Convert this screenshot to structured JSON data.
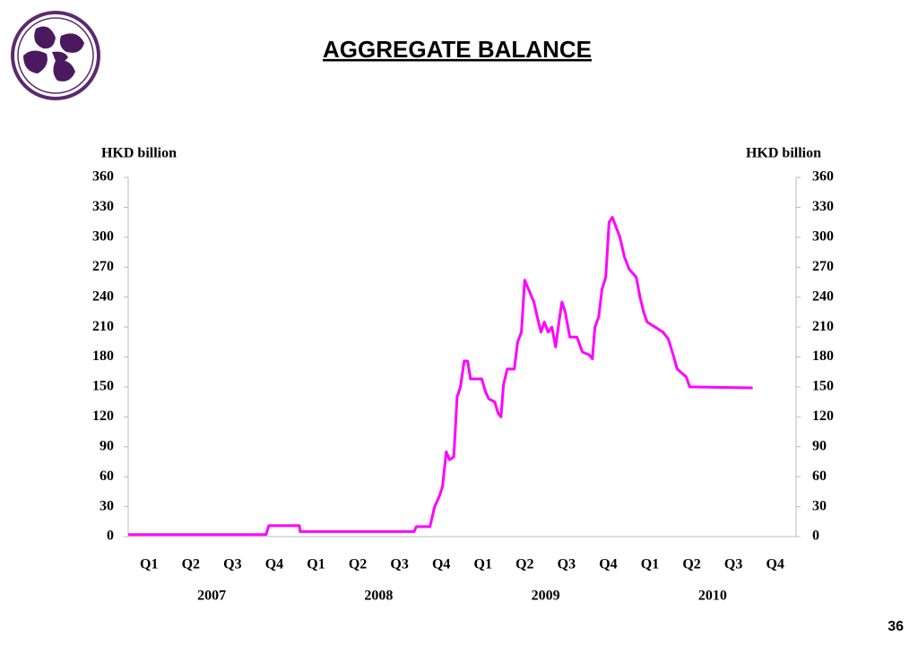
{
  "chart_data": {
    "type": "line",
    "title": "AGGREGATE BALANCE",
    "page_number": "36",
    "y_label": "HKD billion",
    "y2_label": "HKD billion",
    "xlim": [
      0,
      16
    ],
    "xticks": [
      {
        "value": 0.5,
        "label": "Q1"
      },
      {
        "value": 1.5,
        "label": "Q2"
      },
      {
        "value": 2.5,
        "label": "Q3"
      },
      {
        "value": 3.5,
        "label": "Q4"
      },
      {
        "value": 4.5,
        "label": "Q1"
      },
      {
        "value": 5.5,
        "label": "Q2"
      },
      {
        "value": 6.5,
        "label": "Q3"
      },
      {
        "value": 7.5,
        "label": "Q4"
      },
      {
        "value": 8.5,
        "label": "Q1"
      },
      {
        "value": 9.5,
        "label": "Q2"
      },
      {
        "value": 10.5,
        "label": "Q3"
      },
      {
        "value": 11.5,
        "label": "Q4"
      },
      {
        "value": 12.5,
        "label": "Q1"
      },
      {
        "value": 13.5,
        "label": "Q2"
      },
      {
        "value": 14.5,
        "label": "Q3"
      },
      {
        "value": 15.5,
        "label": "Q4"
      }
    ],
    "x_groups": [
      {
        "value": 2,
        "label": "2007"
      },
      {
        "value": 6,
        "label": "2008"
      },
      {
        "value": 10,
        "label": "2009"
      },
      {
        "value": 14,
        "label": "2010"
      }
    ],
    "ylim": [
      0,
      360
    ],
    "yticks": [
      0,
      30,
      60,
      90,
      120,
      150,
      180,
      210,
      240,
      270,
      300,
      330,
      360
    ],
    "y2lim": [
      0,
      360
    ],
    "y2ticks": [
      0,
      30,
      60,
      90,
      120,
      150,
      180,
      210,
      240,
      270,
      300,
      330,
      360
    ],
    "x": [
      0,
      3.3,
      3.37,
      4.1,
      4.12,
      6.85,
      6.9,
      7.23,
      7.34,
      7.45,
      7.53,
      7.62,
      7.7,
      7.8,
      7.88,
      7.96,
      8.05,
      8.13,
      8.2,
      8.47,
      8.56,
      8.64,
      8.78,
      8.86,
      8.93,
      8.99,
      9.08,
      9.25,
      9.33,
      9.42,
      9.5,
      9.59,
      9.72,
      9.8,
      9.89,
      9.97,
      10.06,
      10.15,
      10.24,
      10.32,
      10.39,
      10.47,
      10.58,
      10.75,
      10.88,
      11.05,
      11.12,
      11.18,
      11.27,
      11.35,
      11.44,
      11.52,
      11.6,
      11.69,
      11.78,
      11.89,
      12.0,
      12.17,
      12.26,
      12.35,
      12.43,
      12.81,
      12.94,
      13.07,
      13.15,
      13.37,
      13.45,
      14.96
    ],
    "series": [
      {
        "color": "#ff00ff",
        "values": [
          2,
          2,
          11,
          11,
          5,
          5,
          10,
          10,
          30,
          40,
          50,
          85,
          77,
          80,
          140,
          150,
          176,
          176,
          158,
          158,
          145,
          138,
          135,
          124,
          120,
          152,
          168,
          168,
          195,
          205,
          257,
          248,
          235,
          220,
          205,
          215,
          205,
          210,
          190,
          215,
          235,
          225,
          200,
          200,
          185,
          182,
          178,
          210,
          220,
          248,
          260,
          315,
          320,
          310,
          300,
          280,
          268,
          260,
          240,
          225,
          215,
          205,
          198,
          180,
          168,
          160,
          150,
          149
        ]
      }
    ]
  }
}
